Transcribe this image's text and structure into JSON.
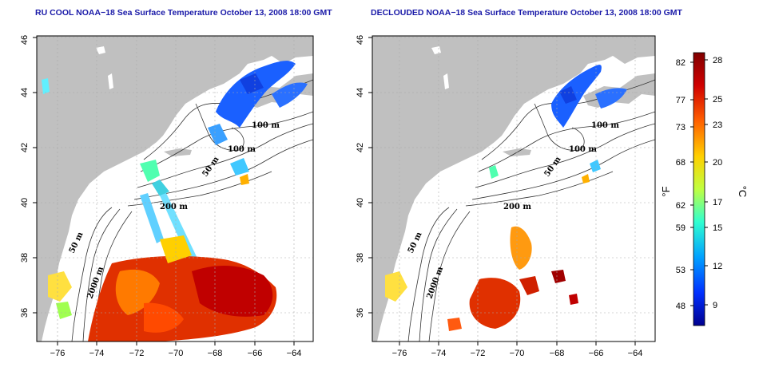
{
  "panels": [
    {
      "title": "RU COOL NOAA−18 Sea Surface Temperature October 13, 2008 18:00 GMT",
      "contour_labels": [
        "100 m",
        "100 m",
        "50 m",
        "200 m",
        "50 m",
        "2000 m"
      ]
    },
    {
      "title": "DECLOUDED NOAA−18 Sea Surface Temperature October 13, 2008 18:00 GMT",
      "contour_labels": [
        "100 m",
        "100 m",
        "50 m",
        "200 m",
        "50 m",
        "2000 m"
      ]
    }
  ],
  "axes": {
    "x_ticks": [
      "−76",
      "−74",
      "−72",
      "−70",
      "−68",
      "−66",
      "−64"
    ],
    "y_ticks": [
      "36",
      "38",
      "40",
      "42",
      "44",
      "46"
    ]
  },
  "colorbar": {
    "fahrenheit_label": "°F",
    "celsius_label": "°C",
    "fahrenheit_ticks": [
      "82",
      "77",
      "73",
      "68",
      "62",
      "59",
      "53",
      "48"
    ],
    "celsius_ticks": [
      "28",
      "25",
      "23",
      "20",
      "17",
      "15",
      "12",
      "9"
    ],
    "colors": [
      "#00008f",
      "#0030ff",
      "#00a0ff",
      "#30ffd0",
      "#c0ff40",
      "#ffd000",
      "#ff6000",
      "#d00000",
      "#800000"
    ]
  },
  "colors": {
    "land": "#c0c0c0",
    "ocean": "#ffffff",
    "grid": "#aaaaaa"
  }
}
